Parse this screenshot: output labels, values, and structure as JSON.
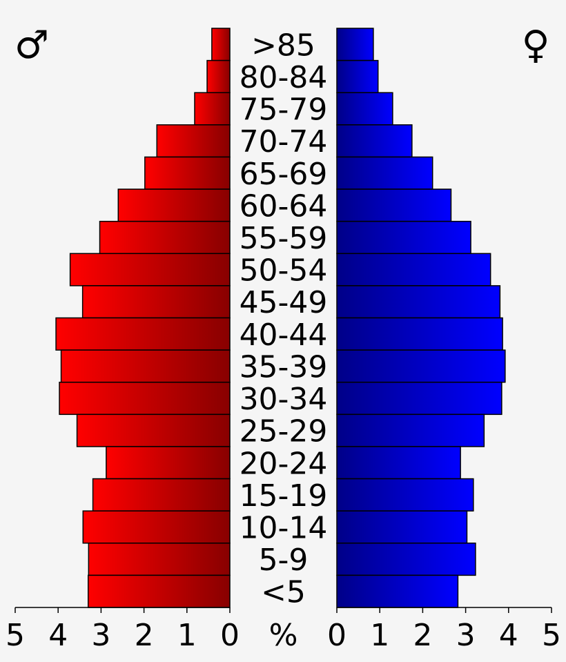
{
  "chart_data": {
    "type": "bar",
    "subtype": "population-pyramid",
    "categories": [
      ">85",
      "80-84",
      "75-79",
      "70-74",
      "65-69",
      "60-64",
      "55-59",
      "50-54",
      "45-49",
      "40-44",
      "35-39",
      "30-34",
      "25-29",
      "20-24",
      "15-19",
      "10-14",
      "5-9",
      "<5"
    ],
    "series": [
      {
        "name": "♂",
        "side": "left",
        "color": "#ff0000",
        "values": [
          0.42,
          0.53,
          0.82,
          1.7,
          1.98,
          2.6,
          3.03,
          3.72,
          3.43,
          4.05,
          3.93,
          3.97,
          3.56,
          2.88,
          3.19,
          3.42,
          3.29,
          3.3
        ]
      },
      {
        "name": "♀",
        "side": "right",
        "color": "#0000ff",
        "values": [
          0.85,
          0.96,
          1.3,
          1.75,
          2.23,
          2.66,
          3.12,
          3.58,
          3.8,
          3.86,
          3.92,
          3.84,
          3.43,
          2.88,
          3.18,
          3.03,
          3.23,
          2.82
        ]
      }
    ],
    "xlim": [
      0,
      5
    ],
    "ticks": [
      "5",
      "4",
      "3",
      "2",
      "1",
      "0",
      "%",
      "0",
      "1",
      "2",
      "3",
      "4",
      "5"
    ],
    "xlabel": "%"
  }
}
